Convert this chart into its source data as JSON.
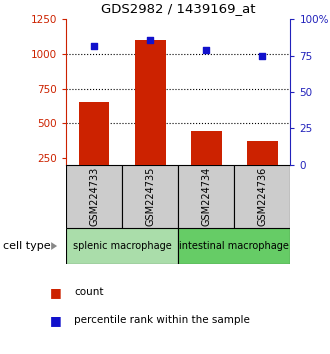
{
  "title": "GDS2982 / 1439169_at",
  "samples": [
    "GSM224733",
    "GSM224735",
    "GSM224734",
    "GSM224736"
  ],
  "counts": [
    650,
    1100,
    440,
    370
  ],
  "percentile_ranks": [
    82,
    86,
    79,
    75
  ],
  "groups": [
    {
      "label": "splenic macrophage",
      "color": "#aaddaa",
      "start": 0,
      "end": 1
    },
    {
      "label": "intestinal macrophage",
      "color": "#66cc66",
      "start": 2,
      "end": 3
    }
  ],
  "ylim_left": [
    200,
    1250
  ],
  "ylim_right": [
    0,
    100
  ],
  "yticks_left": [
    250,
    500,
    750,
    1000,
    1250
  ],
  "yticks_right": [
    0,
    25,
    50,
    75,
    100
  ],
  "bar_color": "#cc2200",
  "dot_color": "#1111cc",
  "sample_box_color": "#cccccc",
  "left_axis_color": "#cc2200",
  "right_axis_color": "#2222bb",
  "bar_width": 0.55
}
